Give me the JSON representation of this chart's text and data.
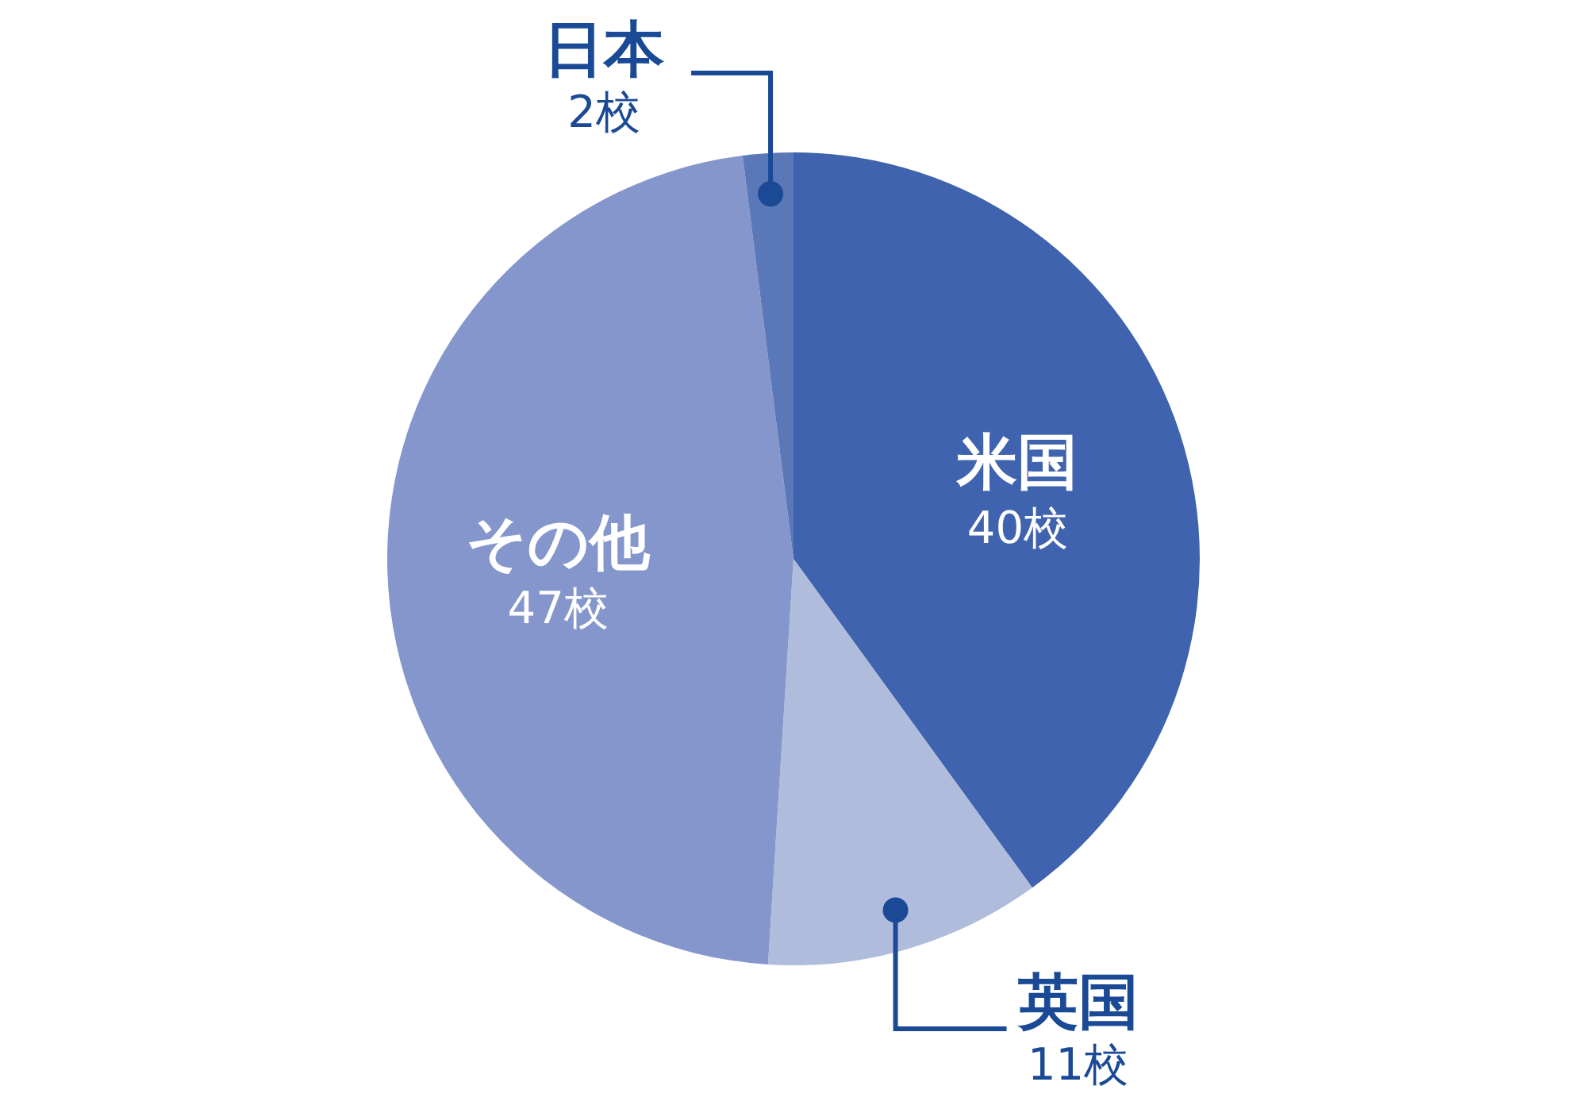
{
  "chart_data": {
    "type": "pie",
    "categories": [
      "米国",
      "英国",
      "その他",
      "日本"
    ],
    "values": [
      40,
      11,
      47,
      2
    ],
    "value_labels": [
      "40校",
      "11校",
      "47校",
      "2校"
    ],
    "colors": [
      "#3f63ae",
      "#b0bcdb",
      "#8496cb",
      "#5a77b8"
    ]
  }
}
